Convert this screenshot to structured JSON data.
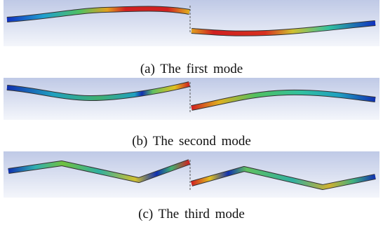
{
  "captions": [
    "(a) The first mode",
    "(b) The second mode",
    "(c) The third mode"
  ]
}
